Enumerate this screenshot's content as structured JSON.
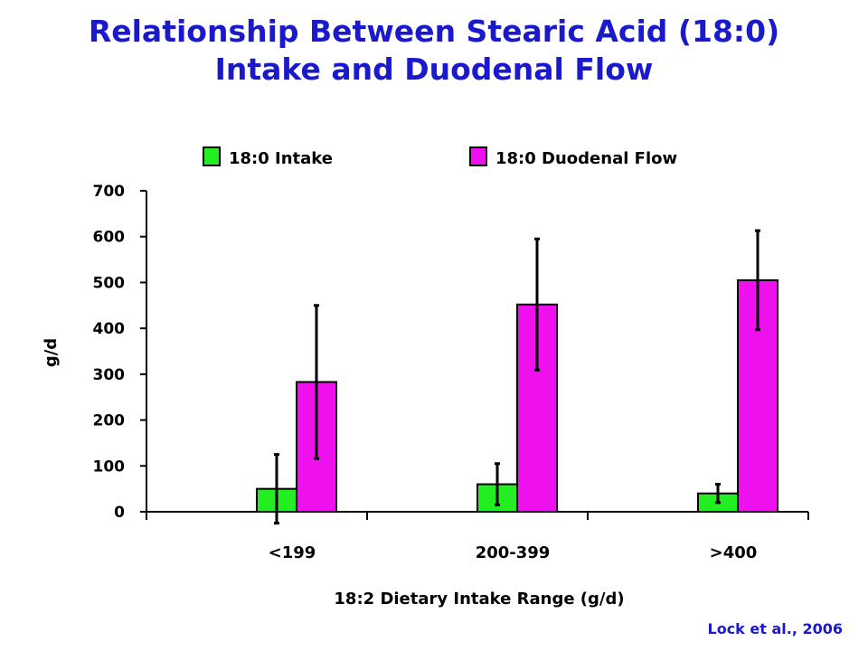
{
  "title": {
    "line1": "Relationship Between Stearic Acid (18:0)",
    "line2": "Intake and Duodenal Flow"
  },
  "citation": "Lock et al., 2006",
  "colors": {
    "title": "#1a1acc",
    "intake": "#22ee22",
    "duodenal": "#ee11ee",
    "axis": "#000000"
  },
  "chart_data": {
    "type": "bar",
    "categories": [
      "<199",
      "200-399",
      ">400"
    ],
    "series": [
      {
        "name": "18:0 Intake",
        "color": "#22ee22",
        "values": [
          50,
          60,
          40
        ],
        "error": [
          75,
          45,
          20
        ]
      },
      {
        "name": "18:0 Duodenal Flow",
        "color": "#ee11ee",
        "values": [
          283,
          452,
          505
        ],
        "error": [
          167,
          143,
          108
        ]
      }
    ],
    "xlabel": "18:2 Dietary Intake Range (g/d)",
    "ylabel": "g/d",
    "ylim": [
      0,
      700
    ],
    "yticks": [
      0,
      100,
      200,
      300,
      400,
      500,
      600,
      700
    ],
    "grid": false,
    "legend": "top",
    "error_bars": "upper"
  }
}
